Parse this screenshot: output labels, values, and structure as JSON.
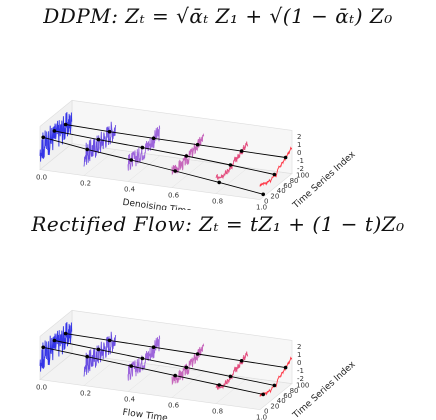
{
  "figure": {
    "top": {
      "equation": "DDPM: Zₜ = √ᾱₜ Z₁ + √(1 − ᾱₜ) Z₀",
      "x_axis_label": "Denoising Time",
      "y_axis_label": "Time Series Index",
      "x_ticks": [
        "0.0",
        "0.2",
        "0.4",
        "0.6",
        "0.8",
        "1.0"
      ],
      "y_ticks": [
        "0",
        "20",
        "40",
        "60",
        "80",
        "100"
      ],
      "z_ticks": [
        "2",
        "1",
        "0",
        "-1",
        "-2"
      ]
    },
    "bottom": {
      "equation": "Rectified Flow: Zₜ = tZ₁ + (1 − t)Z₀",
      "x_axis_label": "Flow Time",
      "y_axis_label": "Time Series Index",
      "x_ticks": [
        "0.0",
        "0.2",
        "0.4",
        "0.6",
        "0.8",
        "1.0"
      ],
      "y_ticks": [
        "0",
        "20",
        "40",
        "60",
        "80",
        "100"
      ],
      "z_ticks": [
        "2",
        "1",
        "0",
        "-1",
        "-2"
      ]
    }
  },
  "colors": {
    "noise_start": "#2a2ae6",
    "mid": "#b46ad6",
    "data_end": "#ff2a3a",
    "trajectory": "#000000"
  }
}
